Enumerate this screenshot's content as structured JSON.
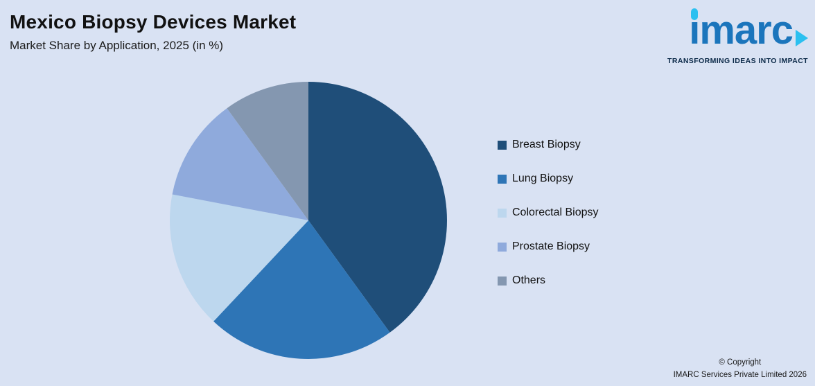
{
  "header": {
    "title": "Mexico Biopsy Devices Market",
    "subtitle": "Market Share by Application, 2025 (in %)"
  },
  "logo": {
    "text": "imarc",
    "tagline": "TRANSFORMING IDEAS INTO IMPACT"
  },
  "footer": {
    "copyright_line1": "© Copyright",
    "copyright_line2": "IMARC Services Private Limited 2026"
  },
  "chart_data": {
    "type": "pie",
    "title": "Mexico Biopsy Devices Market",
    "subtitle": "Market Share by Application, 2025 (in %)",
    "categories": [
      "Breast Biopsy",
      "Lung Biopsy",
      "Colorectal Biopsy",
      "Prostate Biopsy",
      "Others"
    ],
    "values": [
      40,
      22,
      16,
      12,
      10
    ],
    "colors": [
      "#1f4e79",
      "#2e75b6",
      "#bdd7ee",
      "#8faadc",
      "#8497b0"
    ],
    "unit": "%",
    "start_angle_deg": 0,
    "direction": "clockwise",
    "legend_position": "right",
    "data_labels": false
  },
  "colors": {
    "background": "#d9e2f3",
    "title_text": "#111111",
    "logo_blue": "#1b75bc",
    "logo_cyan": "#2bc0f0",
    "tagline_text": "#0b2948"
  }
}
